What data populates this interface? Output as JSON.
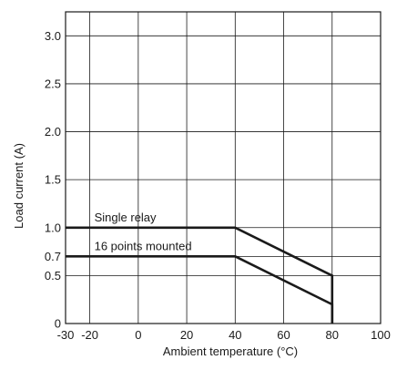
{
  "chart_data": {
    "type": "line",
    "title": "",
    "xlabel": "Ambient temperature (°C)",
    "ylabel": "Load current (A)",
    "xlim": [
      -30,
      100
    ],
    "ylim": [
      0,
      3.25
    ],
    "grid": true,
    "x_ticks": [
      -30,
      -20,
      0,
      20,
      40,
      60,
      80,
      100
    ],
    "x_tick_labels": [
      "-30",
      "-20",
      "0",
      "20",
      "40",
      "60",
      "80",
      "100"
    ],
    "x_grid": [
      -20,
      0,
      20,
      40,
      60,
      80
    ],
    "y_ticks": [
      0,
      0.5,
      0.7,
      1.0,
      1.5,
      2.0,
      2.5,
      3.0
    ],
    "y_tick_labels": [
      "0",
      "0.5",
      "0.7",
      "1.0",
      "1.5",
      "2.0",
      "2.5",
      "3.0"
    ],
    "y_grid": [
      0.5,
      0.7,
      1.0,
      1.5,
      2.0,
      2.5,
      3.0
    ],
    "series": [
      {
        "name": "Single relay",
        "x": [
          -30,
          40,
          80,
          80
        ],
        "y": [
          1.0,
          1.0,
          0.5,
          0
        ]
      },
      {
        "name": "16 points mounted",
        "x": [
          -30,
          40,
          80,
          80
        ],
        "y": [
          0.7,
          0.7,
          0.2,
          0
        ]
      }
    ],
    "colors": {
      "line": "#1a1a1a",
      "grid": "#1a1a1a",
      "text": "#1a1a1a"
    }
  }
}
